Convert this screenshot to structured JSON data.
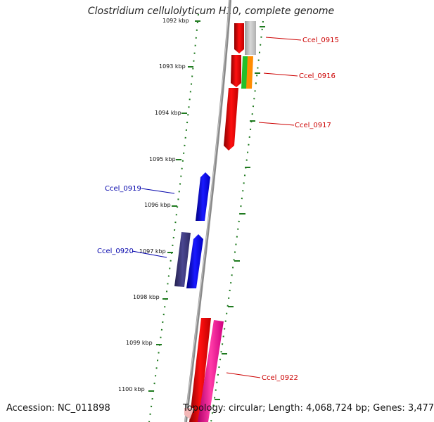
{
  "title": "Clostridium cellulolyticum H10, complete genome",
  "accession": "Accession: NC_011898",
  "topology": "Topology: circular; Length: 4,068,724 bp; Genes: 3,477",
  "colors": {
    "backbone": "#8a8a8a",
    "tick": "#1f7a1f",
    "forward_label": "#cc0000",
    "reverse_label": "#0000aa"
  },
  "scale_labels": [
    "1092 kbp",
    "1093 kbp",
    "1094 kbp",
    "1095 kbp",
    "1096 kbp",
    "1097 kbp",
    "1098 kbp",
    "1099 kbp",
    "1100 kbp"
  ],
  "gene_labels": [
    {
      "name": "Ccel_0915",
      "strand": "forward"
    },
    {
      "name": "Ccel_0916",
      "strand": "forward"
    },
    {
      "name": "Ccel_0917",
      "strand": "forward"
    },
    {
      "name": "Ccel_0919",
      "strand": "reverse"
    },
    {
      "name": "Ccel_0920",
      "strand": "reverse"
    },
    {
      "name": "Ccel_0922",
      "strand": "forward"
    }
  ]
}
